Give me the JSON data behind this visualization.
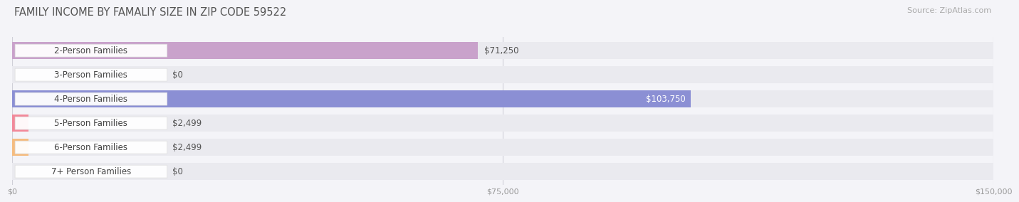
{
  "title": "FAMILY INCOME BY FAMALIY SIZE IN ZIP CODE 59522",
  "source": "Source: ZipAtlas.com",
  "categories": [
    "2-Person Families",
    "3-Person Families",
    "4-Person Families",
    "5-Person Families",
    "6-Person Families",
    "7+ Person Families"
  ],
  "values": [
    71250,
    0,
    103750,
    2499,
    2499,
    0
  ],
  "bar_colors": [
    "#c9a2cb",
    "#5ecbc3",
    "#8b8fd4",
    "#f2899a",
    "#f5bc80",
    "#f5a898"
  ],
  "value_labels": [
    "$71,250",
    "$0",
    "$103,750",
    "$2,499",
    "$2,499",
    "$0"
  ],
  "value_inside": [
    false,
    false,
    true,
    false,
    false,
    false
  ],
  "x_ticks": [
    0,
    75000,
    150000
  ],
  "x_tick_labels": [
    "$0",
    "$75,000",
    "$150,000"
  ],
  "xlim": [
    0,
    150000
  ],
  "background_color": "#f4f4f8",
  "bar_bg_color": "#eaeaef",
  "title_fontsize": 10.5,
  "source_fontsize": 8,
  "cat_fontsize": 8.5,
  "value_fontsize": 8.5
}
